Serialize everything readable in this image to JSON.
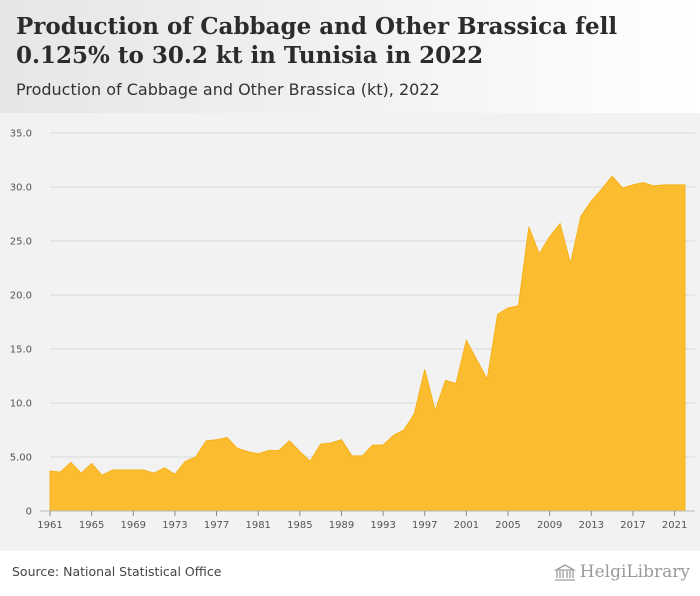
{
  "header": {
    "title": "Production of Cabbage and Other Brassica fell 0.125% to 30.2 kt in Tunisia in 2022",
    "subtitle": "Production of Cabbage and Other Brassica (kt), 2022"
  },
  "footer": {
    "source": "Source: National Statistical Office",
    "logo_text": "HelgiLibrary"
  },
  "colors": {
    "area_fill": "#fbbd2f",
    "area_stroke": "#f5b21c",
    "grid": "#d9d9d9",
    "background": "#f2f2f2"
  },
  "chart_data": {
    "type": "area",
    "title": "Production of Cabbage and Other Brassica (kt), 2022",
    "xlabel": "",
    "ylabel": "",
    "ylim": [
      0,
      35
    ],
    "xlim": [
      1961,
      2022
    ],
    "grid": true,
    "y_ticks": [
      "0",
      "5.00",
      "10.0",
      "15.0",
      "20.0",
      "25.0",
      "30.0",
      "35.0"
    ],
    "y_tick_values": [
      0,
      5,
      10,
      15,
      20,
      25,
      30,
      35
    ],
    "x_ticks": [
      "1961",
      "1965",
      "1969",
      "1973",
      "1977",
      "1981",
      "1985",
      "1989",
      "1993",
      "1997",
      "2001",
      "2005",
      "2009",
      "2013",
      "2017",
      "2021"
    ],
    "x_tick_values": [
      1961,
      1965,
      1969,
      1973,
      1977,
      1981,
      1985,
      1989,
      1993,
      1997,
      2001,
      2005,
      2009,
      2013,
      2017,
      2021
    ],
    "series": [
      {
        "x": [
          1961,
          1962,
          1963,
          1964,
          1965,
          1966,
          1967,
          1968,
          1969,
          1970,
          1971,
          1972,
          1973,
          1974,
          1975,
          1976,
          1977,
          1978,
          1979,
          1980,
          1981,
          1982,
          1983,
          1984,
          1985,
          1986,
          1987,
          1988,
          1989,
          1990,
          1991,
          1992,
          1993,
          1994,
          1995,
          1996,
          1997,
          1998,
          1999,
          2000,
          2001,
          2002,
          2003,
          2004,
          2005,
          2006,
          2007,
          2008,
          2009,
          2010,
          2011,
          2012,
          2013,
          2014,
          2015,
          2016,
          2017,
          2018,
          2019,
          2020,
          2021,
          2022
        ],
        "values": [
          3.7,
          3.6,
          4.5,
          3.5,
          4.4,
          3.3,
          3.8,
          3.8,
          3.8,
          3.8,
          3.5,
          4.0,
          3.4,
          4.6,
          5.0,
          6.5,
          6.6,
          6.8,
          5.8,
          5.5,
          5.3,
          5.6,
          5.6,
          6.5,
          5.5,
          4.6,
          6.2,
          6.3,
          6.6,
          5.1,
          5.1,
          6.1,
          6.1,
          7.0,
          7.5,
          9.0,
          13.1,
          9.3,
          12.1,
          11.8,
          15.8,
          14.0,
          12.2,
          18.2,
          18.8,
          19.0,
          26.3,
          23.8,
          25.4,
          26.6,
          22.9,
          27.3,
          28.7,
          29.8,
          31.0,
          29.9,
          30.2,
          30.4,
          30.1,
          30.2,
          30.2,
          30.2
        ]
      }
    ]
  }
}
